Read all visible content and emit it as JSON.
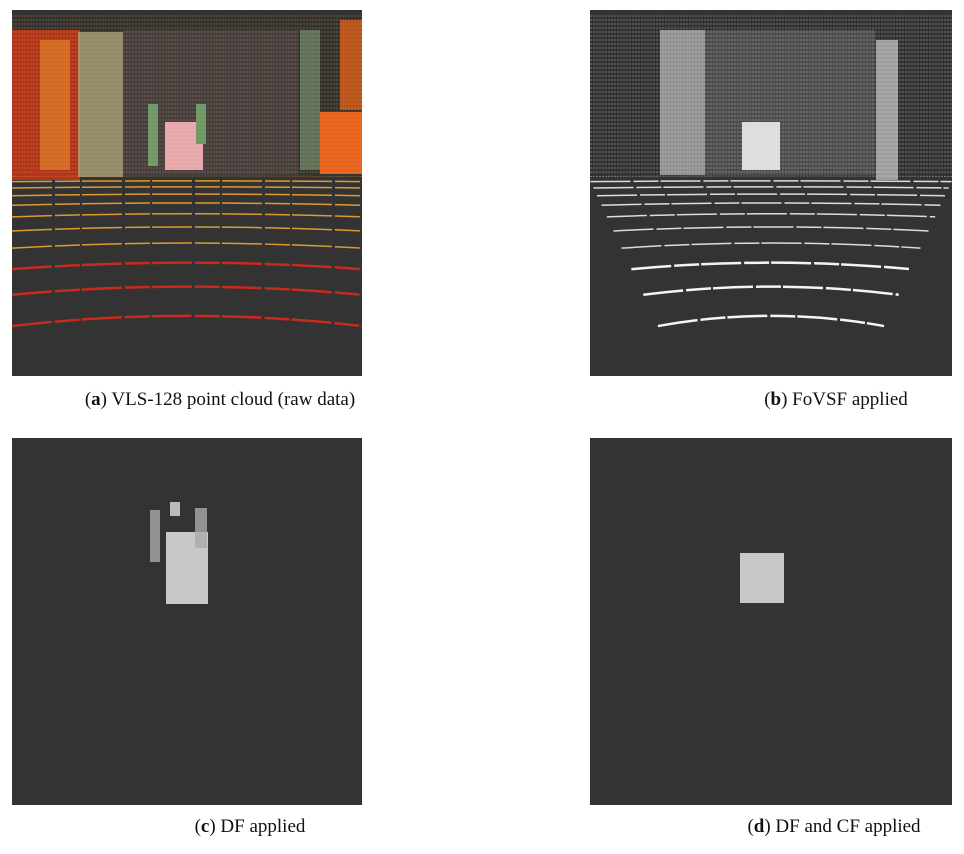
{
  "panels": [
    {
      "caption_parts": [
        "(",
        "a",
        ") VLS-128 point cloud (raw data)"
      ]
    },
    {
      "caption_parts": [
        "(",
        "b",
        ") FoVSF applied"
      ]
    },
    {
      "caption_parts": [
        "(",
        "c",
        ") DF applied"
      ]
    },
    {
      "caption_parts": [
        "(",
        "d",
        ") DF and CF applied"
      ]
    }
  ]
}
